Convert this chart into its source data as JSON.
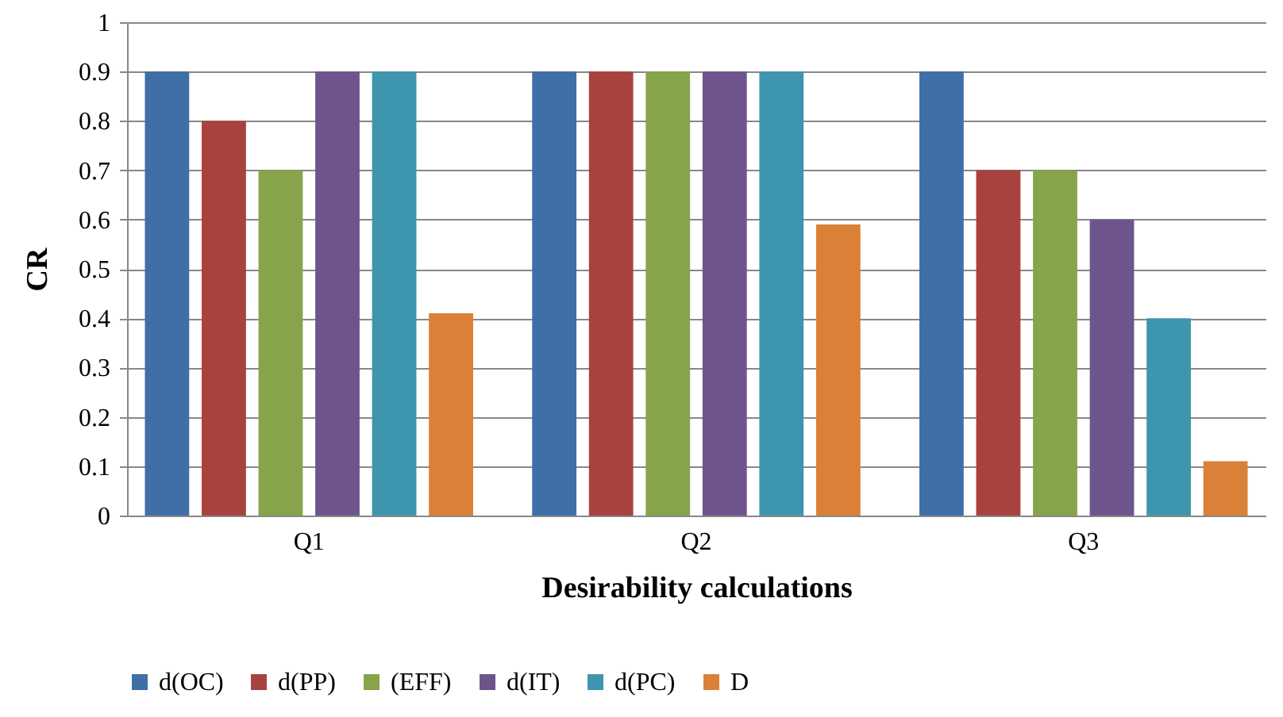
{
  "chart_data": {
    "type": "bar",
    "xlabel": "Desirability calculations",
    "ylabel": "CR",
    "categories": [
      "Q1",
      "Q2",
      "Q3"
    ],
    "series": [
      {
        "name": "d(OC)",
        "color": "#3f6fa6",
        "values": [
          0.9,
          0.9,
          0.9
        ]
      },
      {
        "name": "d(PP)",
        "color": "#a8423f",
        "values": [
          0.8,
          0.9,
          0.7
        ]
      },
      {
        "name": "(EFF)",
        "color": "#86a44a",
        "values": [
          0.7,
          0.9,
          0.7
        ]
      },
      {
        "name": "d(IT)",
        "color": "#6e548d",
        "values": [
          0.9,
          0.9,
          0.6
        ]
      },
      {
        "name": "d(PC)",
        "color": "#3d96ae",
        "values": [
          0.9,
          0.9,
          0.4
        ]
      },
      {
        "name": "D",
        "color": "#da8137",
        "values": [
          0.41,
          0.59,
          0.11
        ]
      }
    ],
    "ylim": [
      0,
      1
    ],
    "yticks": [
      0,
      0.1,
      0.2,
      0.3,
      0.4,
      0.5,
      0.6,
      0.7,
      0.8,
      0.9,
      1
    ],
    "grid": "y",
    "legend": "bottom"
  }
}
